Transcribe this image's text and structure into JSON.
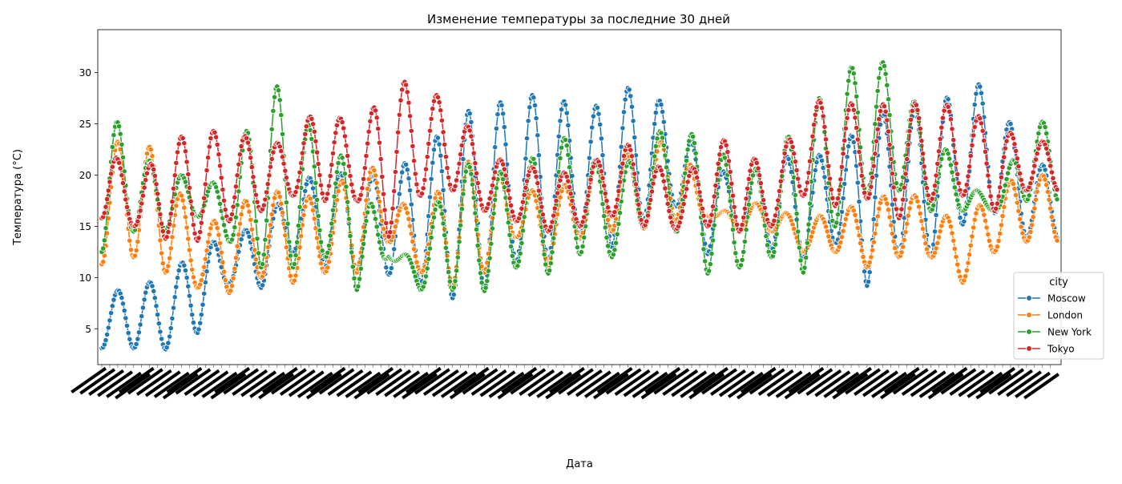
{
  "chart_data": {
    "type": "line",
    "title": "Изменение температуры за последние 30 дней",
    "xlabel": "Дата",
    "ylabel": "Температура (°C)",
    "ylim": [
      1.5,
      34.2
    ],
    "yticks": [
      5,
      10,
      15,
      20,
      25,
      30
    ],
    "grid": false,
    "legend": {
      "title": "city",
      "placement": "lower-right"
    },
    "x_tick_labels_overlapping": true,
    "sampling": "hourly-like, 720 points per city over 30 days; values read approximately from the plot",
    "series": [
      {
        "name": "Moscow",
        "color": "#1f77b4",
        "daily_min": [
          3.1,
          3.1,
          3.0,
          4.6,
          9.5,
          9.0,
          12.5,
          11.0,
          10.5,
          10.3,
          9.5,
          8.0,
          8.8,
          11.5,
          11.6,
          13.8,
          13.0,
          15.5,
          17.0,
          12.3,
          14.5,
          12.7,
          12.0,
          13.4,
          9.2,
          12.2,
          12.0,
          15.2,
          16.3,
          13.8
        ],
        "daily_max": [
          8.3,
          9.2,
          9.9,
          13.0,
          14.0,
          15.3,
          19.0,
          20.5,
          19.8,
          20.3,
          22.0,
          25.5,
          27.0,
          27.2,
          28.4,
          26.0,
          27.5,
          29.5,
          25.0,
          21.5,
          19.2,
          22.0,
          21.5,
          22.4,
          25.3,
          26.9,
          26.4,
          28.7,
          29.0,
          21.0
        ]
      },
      {
        "name": "London",
        "color": "#ff7f0e",
        "daily_min": [
          11.3,
          12.0,
          10.5,
          9.0,
          8.5,
          10.0,
          9.5,
          10.5,
          10.5,
          13.5,
          10.5,
          9.0,
          10.5,
          14.0,
          11.2,
          13.9,
          14.5,
          14.8,
          15.5,
          16.0,
          14.5,
          14.5,
          12.5,
          12.5,
          11.0,
          12.0,
          12.0,
          9.5,
          12.5,
          13.5
        ],
        "daily_max": [
          23.0,
          23.5,
          22.0,
          14.0,
          17.0,
          18.0,
          18.8,
          17.0,
          21.8,
          19.6,
          14.5,
          21.9,
          20.7,
          19.0,
          18.0,
          20.1,
          23.0,
          21.0,
          25.4,
          16.0,
          17.0,
          17.5,
          15.0,
          17.0,
          16.8,
          19.0,
          17.0,
          15.0,
          19.0,
          20.0
        ]
      },
      {
        "name": "New York",
        "color": "#2ca02c",
        "daily_min": [
          12.5,
          14.5,
          14.5,
          16.0,
          13.5,
          11.0,
          11.0,
          12.0,
          8.8,
          12.0,
          8.8,
          8.8,
          8.7,
          11.0,
          10.4,
          12.3,
          12.0,
          15.0,
          14.5,
          10.4,
          11.0,
          12.0,
          10.5,
          15.0,
          18.0,
          18.5,
          16.5,
          16.5,
          16.5,
          17.5
        ],
        "daily_max": [
          27.5,
          22.8,
          20.0,
          20.0,
          18.5,
          29.6,
          27.7,
          22.0,
          21.8,
          12.0,
          12.5,
          21.8,
          20.3,
          20.3,
          23.0,
          24.2,
          18.5,
          24.0,
          24.5,
          23.5,
          20.5,
          20.7,
          26.7,
          28.3,
          32.7,
          29.3,
          25.0,
          19.8,
          17.0,
          25.2
        ]
      },
      {
        "name": "Tokyo",
        "color": "#d62728",
        "daily_min": [
          15.8,
          15.0,
          13.8,
          13.6,
          15.5,
          16.5,
          18.0,
          17.5,
          17.5,
          14.0,
          18.0,
          18.5,
          16.5,
          15.5,
          14.5,
          15.0,
          16.0,
          15.0,
          14.7,
          15.0,
          14.5,
          15.0,
          18.0,
          17.0,
          17.7,
          15.8,
          17.5,
          18.0,
          16.5,
          18.5
        ],
        "daily_max": [
          24.6,
          18.5,
          23.5,
          24.0,
          24.6,
          23.0,
          23.3,
          28.0,
          23.0,
          30.0,
          28.2,
          27.4,
          22.0,
          21.0,
          20.5,
          20.0,
          22.9,
          23.0,
          18.5,
          22.8,
          24.0,
          19.0,
          27.5,
          27.0,
          27.0,
          26.8,
          27.2,
          26.5,
          25.0,
          23.3
        ]
      }
    ]
  }
}
